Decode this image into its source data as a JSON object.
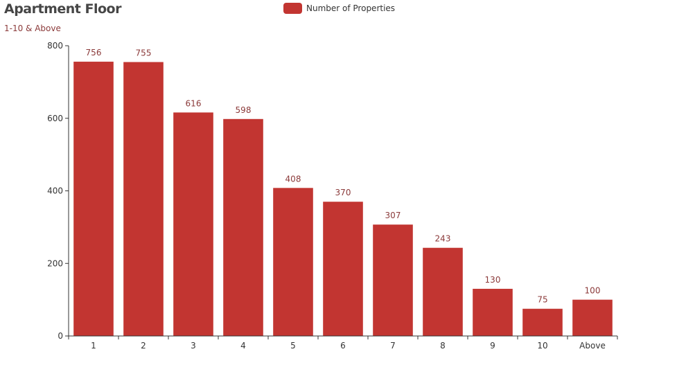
{
  "chart_data": {
    "type": "bar",
    "title": "Apartment Floor",
    "subtitle": "1-10 & Above",
    "categories": [
      "1",
      "2",
      "3",
      "4",
      "5",
      "6",
      "7",
      "8",
      "9",
      "10",
      "Above"
    ],
    "series": [
      {
        "name": "Number of Properties",
        "values": [
          756,
          755,
          616,
          598,
          408,
          370,
          307,
          243,
          130,
          75,
          100
        ]
      }
    ],
    "y_ticks": [
      "0",
      "200",
      "400",
      "600",
      "800"
    ],
    "ylim": [
      0,
      800
    ],
    "xlabel": "",
    "ylabel": "",
    "legend_position": "top-center",
    "grid": false,
    "data_labels": true,
    "colors": {
      "bar": "#c23531",
      "label": "#8b3a3a",
      "axis": "#333333"
    }
  }
}
